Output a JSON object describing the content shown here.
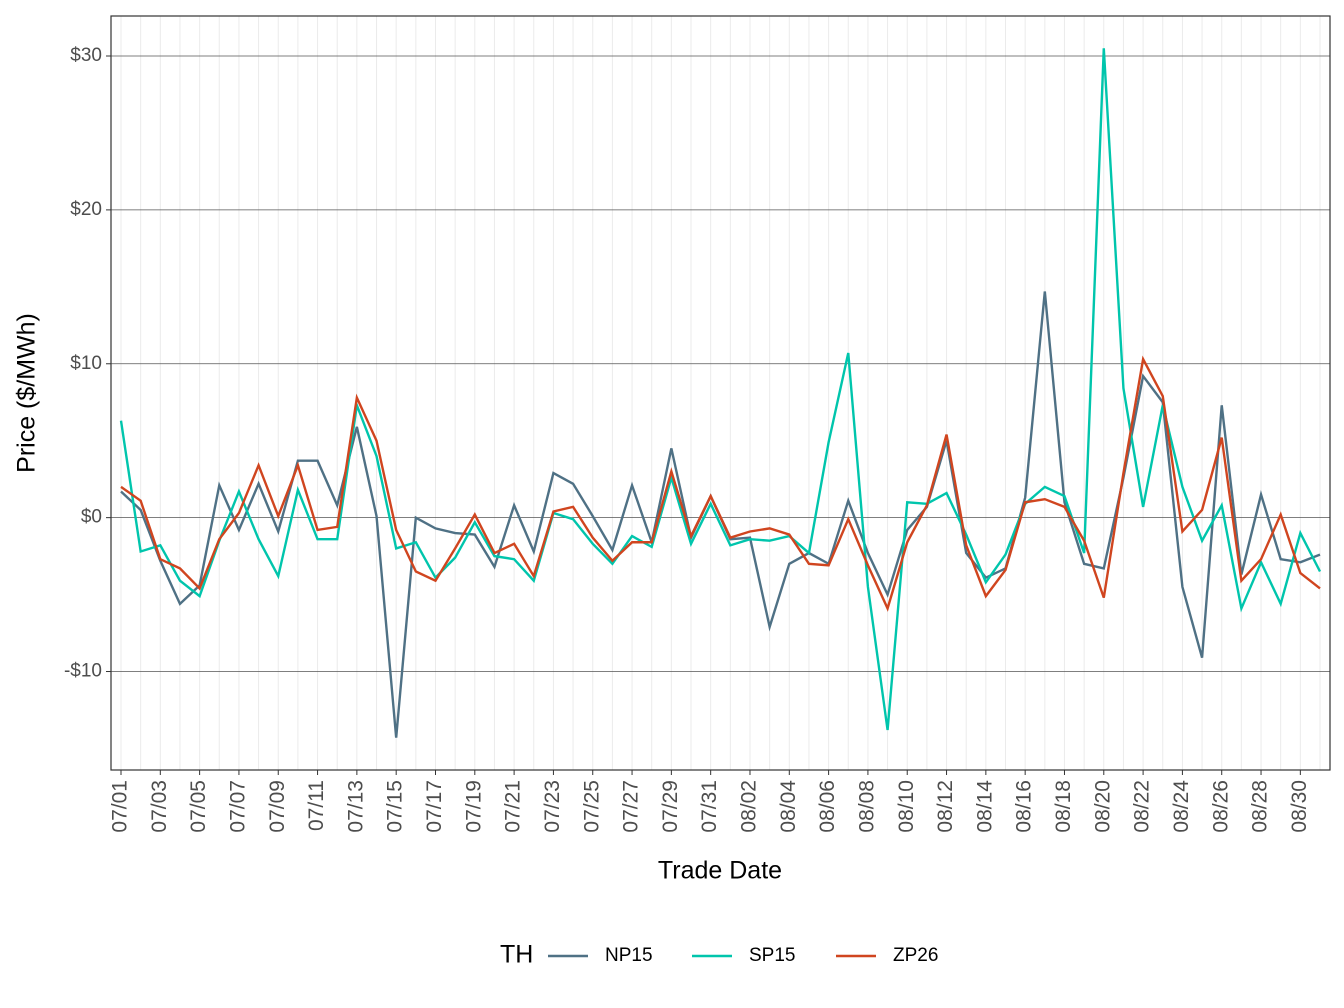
{
  "chart_data": {
    "type": "line",
    "xlabel": "Trade Date",
    "ylabel": "Price ($/MWh)",
    "categories": [
      "07/01",
      null,
      "07/03",
      null,
      "07/05",
      null,
      "07/07",
      null,
      "07/09",
      null,
      "07/11",
      null,
      "07/13",
      null,
      "07/15",
      null,
      "07/17",
      null,
      "07/19",
      null,
      "07/21",
      null,
      "07/23",
      null,
      "07/25",
      null,
      "07/27",
      null,
      "07/29",
      null,
      "07/31",
      null,
      "08/02",
      null,
      "08/04",
      null,
      "08/06",
      null,
      "08/08",
      null,
      "08/10",
      null,
      "08/12",
      null,
      "08/14",
      null,
      "08/16",
      null,
      "08/18",
      null,
      "08/20",
      null,
      "08/22",
      null,
      "08/24",
      null,
      "08/26",
      null,
      "08/28",
      null,
      "08/30",
      null
    ],
    "series": [
      {
        "name": "NP15",
        "color": "#4f7185",
        "values": [
          1.7,
          0.5,
          -2.8,
          -5.6,
          -4.4,
          2.1,
          -0.8,
          2.2,
          -0.9,
          3.7,
          3.7,
          0.8,
          5.9,
          0.1,
          -14.3,
          0.0,
          -0.7,
          -1.0,
          -1.1,
          -3.2,
          0.8,
          -2.2,
          2.9,
          2.2,
          0.1,
          -2.1,
          2.1,
          -1.6,
          4.5,
          -1.3,
          1.4,
          -1.4,
          -1.3,
          -7.1,
          -3.0,
          -2.3,
          -3.0,
          1.1,
          -2.3,
          -5.0,
          -0.8,
          0.7,
          5.0,
          -2.3,
          -3.9,
          -3.3,
          1.3,
          14.7,
          1.0,
          -3.0,
          -3.3,
          2.6,
          9.2,
          7.5,
          -4.5,
          -9.1,
          7.3,
          -3.7,
          1.5,
          -2.7,
          -2.9,
          -2.4
        ]
      },
      {
        "name": "SP15",
        "color": "#00c5ac",
        "values": [
          6.3,
          -2.2,
          -1.8,
          -4.1,
          -5.1,
          -1.5,
          1.7,
          -1.4,
          -3.8,
          1.8,
          -1.4,
          -1.4,
          7.3,
          4.0,
          -2.0,
          -1.6,
          -3.9,
          -2.6,
          -0.3,
          -2.5,
          -2.7,
          -4.1,
          0.3,
          -0.1,
          -1.7,
          -3.0,
          -1.2,
          -1.9,
          2.6,
          -1.7,
          0.9,
          -1.8,
          -1.4,
          -1.5,
          -1.2,
          -2.3,
          4.9,
          10.7,
          -4.5,
          -13.8,
          1.0,
          0.9,
          1.6,
          -1.1,
          -4.2,
          -2.4,
          0.9,
          2.0,
          1.4,
          -2.3,
          30.5,
          8.4,
          0.7,
          7.3,
          2.0,
          -1.5,
          0.8,
          -5.9,
          -2.9,
          -5.6,
          -1.0,
          -3.5
        ]
      },
      {
        "name": "ZP26",
        "color": "#d0451f",
        "values": [
          2.0,
          1.1,
          -2.7,
          -3.3,
          -4.6,
          -1.4,
          0.3,
          3.4,
          0.1,
          3.4,
          -0.8,
          -0.6,
          7.8,
          5.0,
          -0.8,
          -3.5,
          -4.1,
          -2.0,
          0.2,
          -2.3,
          -1.7,
          -3.8,
          0.4,
          0.7,
          -1.3,
          -2.8,
          -1.6,
          -1.6,
          3.0,
          -1.2,
          1.4,
          -1.3,
          -0.9,
          -0.7,
          -1.1,
          -3.0,
          -3.1,
          -0.1,
          -3.1,
          -5.9,
          -1.6,
          0.8,
          5.4,
          -1.8,
          -5.1,
          -3.4,
          1.0,
          1.2,
          0.7,
          -1.5,
          -5.2,
          2.9,
          10.3,
          7.9,
          -0.9,
          0.5,
          5.2,
          -4.1,
          -2.7,
          0.2,
          -3.6,
          -4.6
        ]
      }
    ],
    "ylim": [
      -16.4,
      32.6
    ],
    "yticks": [
      {
        "value": -10,
        "label": "-$10"
      },
      {
        "value": 0,
        "label": "$0"
      },
      {
        "value": 10,
        "label": "$10"
      },
      {
        "value": 20,
        "label": "$20"
      },
      {
        "value": 30,
        "label": "$30"
      }
    ],
    "grid": true,
    "legend": {
      "title": "TH",
      "position": "bottom"
    }
  }
}
